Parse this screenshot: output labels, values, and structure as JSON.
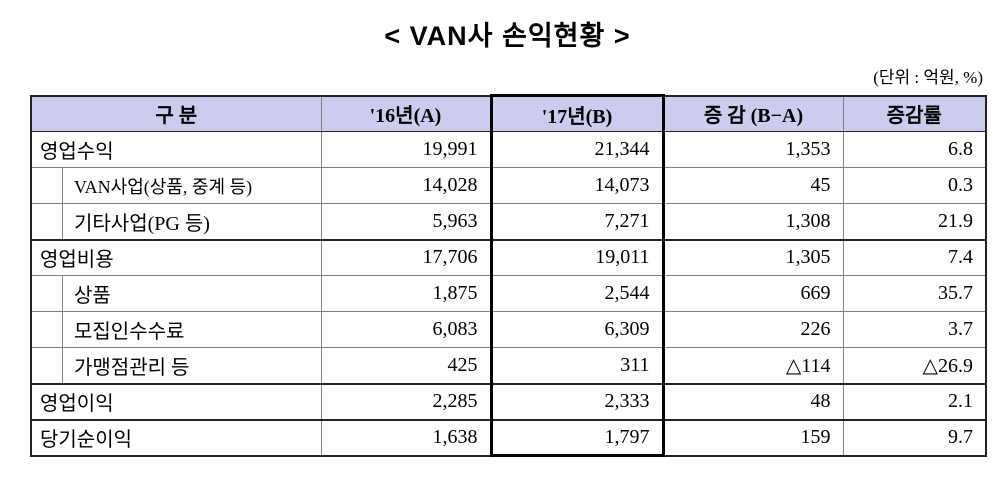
{
  "title": "<  VAN사  손익현황  >",
  "unit_note": "(단위 : 억원, %)",
  "colors": {
    "header_bg": "#CCCCEE",
    "highlight_border": "#000000",
    "grid_line": "#808080",
    "strong_line": "#222222"
  },
  "table": {
    "columns": [
      "구    분",
      "'16년(A)",
      "'17년(B)",
      "증 감 (B−A)",
      "증감률"
    ],
    "rows": [
      {
        "label": "영업수익",
        "v16": "19,991",
        "v17": "21,344",
        "diff": "1,353",
        "rate": "6.8"
      },
      {
        "label": "VAN사업(상품, 중계 등)",
        "v16": "14,028",
        "v17": "14,073",
        "diff": "45",
        "rate": "0.3"
      },
      {
        "label": "기타사업(PG 등)",
        "v16": "5,963",
        "v17": "7,271",
        "diff": "1,308",
        "rate": "21.9"
      },
      {
        "label": "영업비용",
        "v16": "17,706",
        "v17": "19,011",
        "diff": "1,305",
        "rate": "7.4"
      },
      {
        "label": "상품",
        "v16": "1,875",
        "v17": "2,544",
        "diff": "669",
        "rate": "35.7"
      },
      {
        "label": "모집인수수료",
        "v16": "6,083",
        "v17": "6,309",
        "diff": "226",
        "rate": "3.7"
      },
      {
        "label": "가맹점관리 등",
        "v16": "425",
        "v17": "311",
        "diff": "△114",
        "rate": "△26.9"
      },
      {
        "label": "영업이익",
        "v16": "2,285",
        "v17": "2,333",
        "diff": "48",
        "rate": "2.1"
      },
      {
        "label": "당기순이익",
        "v16": "1,638",
        "v17": "1,797",
        "diff": "159",
        "rate": "9.7"
      }
    ]
  }
}
